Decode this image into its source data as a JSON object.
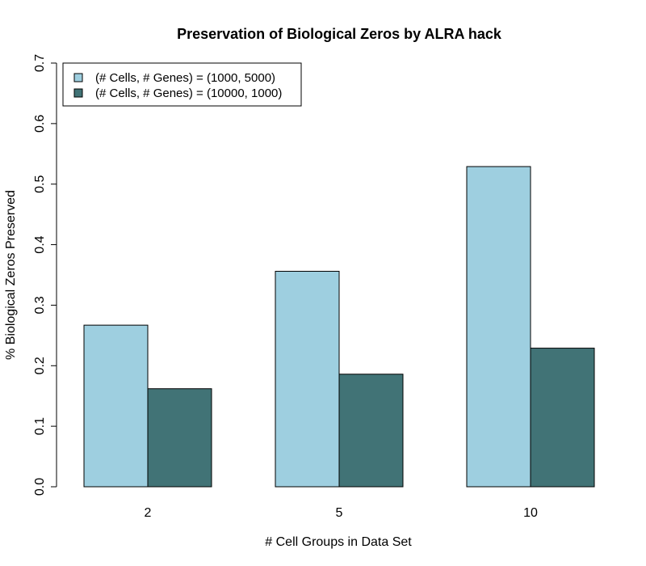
{
  "chart_data": {
    "type": "bar",
    "title": "Preservation of Biological Zeros by ALRA hack",
    "xlabel": "# Cell Groups in Data Set",
    "ylabel": "% Biological Zeros Preserved",
    "categories": [
      "2",
      "5",
      "10"
    ],
    "series": [
      {
        "name": "(# Cells, # Genes) = (1000, 5000)",
        "color": "#9ecfe0",
        "values": [
          0.267,
          0.356,
          0.529
        ]
      },
      {
        "name": "(# Cells, # Genes) = (10000, 1000)",
        "color": "#417376",
        "values": [
          0.162,
          0.186,
          0.229
        ]
      }
    ],
    "ylim": [
      0,
      0.7
    ],
    "yticks": [
      "0.0",
      "0.1",
      "0.2",
      "0.3",
      "0.4",
      "0.5",
      "0.6",
      "0.7"
    ],
    "grid": false,
    "legend_position": "top-left"
  }
}
